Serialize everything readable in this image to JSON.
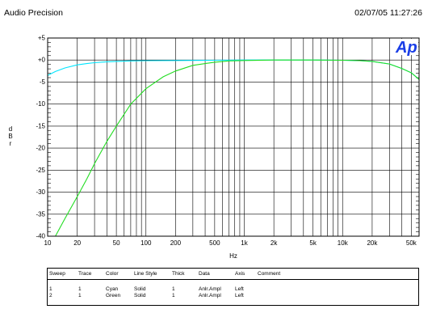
{
  "header": {
    "brand": "Audio Precision",
    "timestamp": "02/07/05 11:27:26"
  },
  "logo": {
    "text": "Ap",
    "color": "#1a3ee6"
  },
  "chart_data": {
    "type": "line",
    "title": "",
    "xlabel": "Hz",
    "ylabel": "d B r",
    "xscale": "log",
    "xlim": [
      10,
      60000
    ],
    "ylim": [
      -40,
      5
    ],
    "grid": true,
    "x_ticks": [
      {
        "value": 10,
        "label": "10"
      },
      {
        "value": 20,
        "label": "20"
      },
      {
        "value": 50,
        "label": "50"
      },
      {
        "value": 100,
        "label": "100"
      },
      {
        "value": 200,
        "label": "200"
      },
      {
        "value": 500,
        "label": "500"
      },
      {
        "value": 1000,
        "label": "1k"
      },
      {
        "value": 2000,
        "label": "2k"
      },
      {
        "value": 5000,
        "label": "5k"
      },
      {
        "value": 10000,
        "label": "10k"
      },
      {
        "value": 20000,
        "label": "20k"
      },
      {
        "value": 50000,
        "label": "50k"
      }
    ],
    "y_ticks": [
      {
        "value": 5,
        "label": "+5"
      },
      {
        "value": 0,
        "label": "+0"
      },
      {
        "value": -5,
        "label": "-5"
      },
      {
        "value": -10,
        "label": "-10"
      },
      {
        "value": -15,
        "label": "-15"
      },
      {
        "value": -20,
        "label": "-20"
      },
      {
        "value": -25,
        "label": "-25"
      },
      {
        "value": -30,
        "label": "-30"
      },
      {
        "value": -35,
        "label": "-35"
      },
      {
        "value": -40,
        "label": "-40"
      }
    ],
    "series": [
      {
        "color": "#00e5ff",
        "x": [
          10,
          12,
          15,
          20,
          25,
          30,
          40,
          50,
          70,
          100,
          200,
          500,
          1000,
          2000,
          5000,
          10000,
          15000,
          20000,
          30000,
          40000,
          50000,
          60000
        ],
        "y": [
          -3.5,
          -2.6,
          -1.8,
          -1.1,
          -0.8,
          -0.6,
          -0.4,
          -0.3,
          -0.2,
          -0.15,
          -0.1,
          -0.05,
          0,
          0,
          0,
          -0.05,
          -0.15,
          -0.3,
          -0.9,
          -1.9,
          -2.9,
          -4.4
        ]
      },
      {
        "color": "#22dd22",
        "x": [
          12,
          15,
          20,
          25,
          30,
          40,
          50,
          70,
          100,
          150,
          200,
          300,
          500,
          700,
          1000,
          2000,
          5000,
          10000,
          15000,
          20000,
          30000,
          40000,
          50000,
          60000
        ],
        "y": [
          -40,
          -36,
          -31,
          -27,
          -23.5,
          -18.5,
          -15,
          -10,
          -6.5,
          -3.8,
          -2.5,
          -1.2,
          -0.5,
          -0.2,
          -0.1,
          0,
          0,
          -0.05,
          -0.15,
          -0.3,
          -0.9,
          -1.9,
          -2.9,
          -4.4
        ]
      }
    ]
  },
  "legend": {
    "columns": [
      "Sweep",
      "Trace",
      "Color",
      "Line Style",
      "Thick",
      "Data",
      "Axis",
      "Comment"
    ],
    "rows": [
      [
        "1",
        "1",
        "Cyan",
        "Solid",
        "1",
        "Anlr.Ampl",
        "Left",
        ""
      ],
      [
        "2",
        "1",
        "Green",
        "Solid",
        "1",
        "Anlr.Ampl",
        "Left",
        ""
      ]
    ]
  }
}
